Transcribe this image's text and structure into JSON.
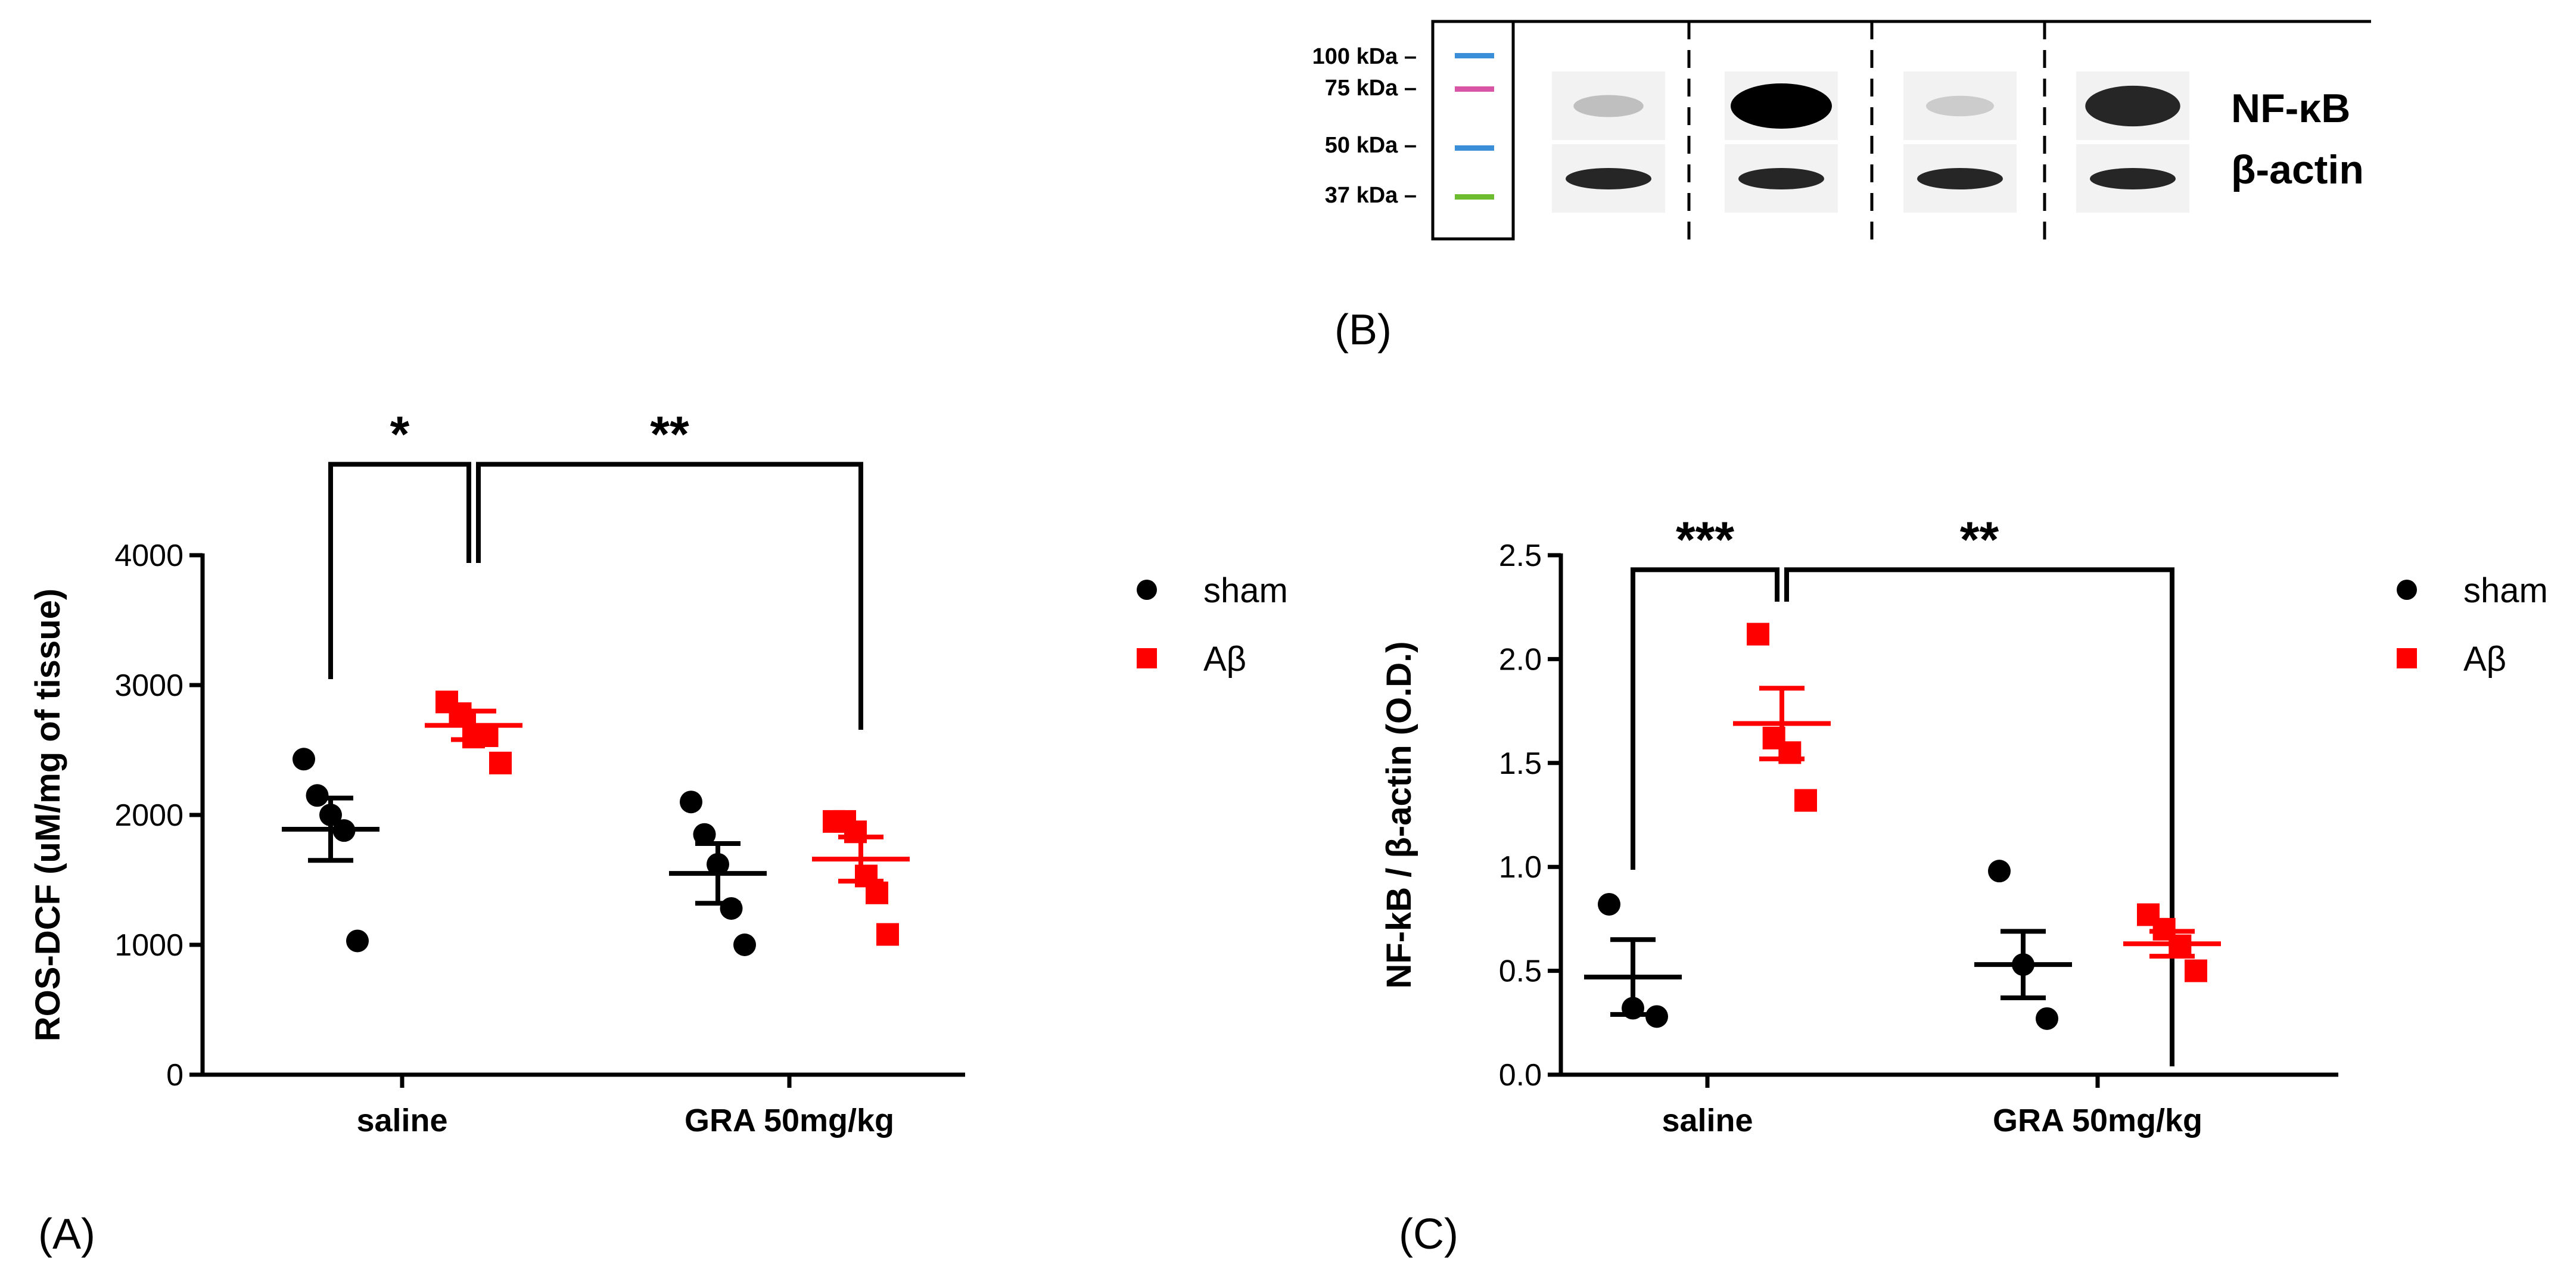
{
  "chart_data": [
    {
      "panel": "A",
      "type": "scatter",
      "ylabel": "ROS-DCF (uM/mg of tissue)",
      "ylim": [
        0,
        4000
      ],
      "yticks": [
        "0",
        "1000",
        "2000",
        "3000",
        "4000"
      ],
      "categories": [
        "saline",
        "GRA 50mg/kg"
      ],
      "legend": [
        "sham",
        "Aβ"
      ],
      "series": [
        {
          "name": "sham",
          "color": "#000000",
          "marker": "circle",
          "points": [
            [
              2430,
              2150,
              2000,
              1880,
              1030
            ],
            [
              2100,
              1850,
              1620,
              1280,
              1000
            ]
          ],
          "mean": [
            1890,
            1550
          ],
          "sem": [
            240,
            230
          ]
        },
        {
          "name": "Aβ",
          "color": "#ff0000",
          "marker": "square",
          "points": [
            [
              2870,
              2780,
              2600,
              2610,
              2400
            ],
            [
              1950,
              1950,
              1870,
              1530,
              1400,
              1080
            ]
          ],
          "mean": [
            2690,
            1660
          ],
          "sem": [
            110,
            170
          ]
        }
      ],
      "significance": [
        {
          "label": "*",
          "from": [
            0,
            0
          ],
          "to": [
            0,
            1
          ],
          "y": 4700
        },
        {
          "label": "**",
          "from": [
            0,
            1
          ],
          "to": [
            1,
            1
          ],
          "y": 4700
        }
      ]
    },
    {
      "panel": "C",
      "type": "scatter",
      "ylabel": "NF-kB / β-actin (O.D.)",
      "ylim": [
        0,
        2.5
      ],
      "yticks": [
        "0.0",
        "0.5",
        "1.0",
        "1.5",
        "2.0",
        "2.5"
      ],
      "categories": [
        "saline",
        "GRA 50mg/kg"
      ],
      "legend": [
        "sham",
        "Aβ"
      ],
      "series": [
        {
          "name": "sham",
          "color": "#000000",
          "marker": "circle",
          "points": [
            [
              0.82,
              0.32,
              0.28
            ],
            [
              0.98,
              0.53,
              0.27
            ]
          ],
          "mean": [
            0.47,
            0.53
          ],
          "sem": [
            0.18,
            0.16
          ]
        },
        {
          "name": "Aβ",
          "color": "#ff0000",
          "marker": "square",
          "points": [
            [
              2.12,
              1.62,
              1.55,
              1.32
            ],
            [
              0.77,
              0.7,
              0.62,
              0.5
            ]
          ],
          "mean": [
            1.69,
            0.63
          ],
          "sem": [
            0.17,
            0.06
          ]
        }
      ],
      "significance": [
        {
          "label": "***",
          "from": [
            0,
            0
          ],
          "to": [
            0,
            1
          ],
          "y": 2.43
        },
        {
          "label": "**",
          "from": [
            0,
            1
          ],
          "to": [
            1,
            1
          ],
          "y": 2.43
        }
      ]
    }
  ],
  "panel_labels": {
    "a": "(A)",
    "b": "(B)",
    "c": "(C)"
  },
  "blot": {
    "ladder": [
      "100 kDa –",
      "75 kDa –",
      "50 kDa –",
      "37 kDa –"
    ],
    "row_labels": [
      "NF-κB",
      "β-actin"
    ],
    "nfkb_intensity": [
      0.25,
      1.0,
      0.2,
      0.85
    ],
    "actin_intensity": [
      0.85,
      0.85,
      0.85,
      0.85
    ]
  }
}
